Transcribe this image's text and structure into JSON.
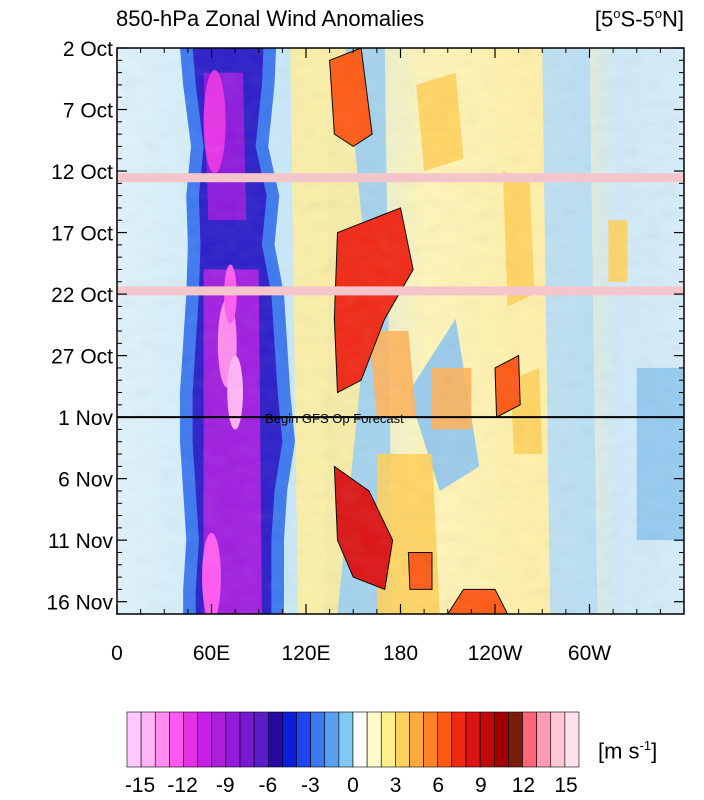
{
  "chart_data": {
    "type": "heatmap",
    "title": "850-hPa Zonal Wind Anomalies",
    "region": {
      "prefix": "[5",
      "lat_s": "S-5",
      "lat_n": "N]",
      "degree": "o"
    },
    "xlabel": "",
    "ylabel": "",
    "x_ticks": [
      "0",
      "60E",
      "120E",
      "180",
      "120W",
      "60W"
    ],
    "x_tick_lons": [
      0,
      60,
      120,
      180,
      240,
      300
    ],
    "x_range": [
      0,
      360
    ],
    "y_ticks": [
      "2 Oct",
      "7 Oct",
      "12 Oct",
      "17 Oct",
      "22 Oct",
      "27 Oct",
      "1 Nov",
      "6 Nov",
      "11 Nov",
      "16 Nov"
    ],
    "y_tick_days": [
      0,
      5,
      10,
      15,
      20,
      25,
      30,
      35,
      40,
      45
    ],
    "y_range_days": [
      0,
      46
    ],
    "forecast_line": {
      "day": 30,
      "label": "Begin GFS Op Forecast"
    },
    "missing_data_days": [
      10.5,
      19.7
    ],
    "colorbar": {
      "labels": [
        "-15",
        "-12",
        "-9",
        "-6",
        "-3",
        "0",
        "3",
        "6",
        "9",
        "12",
        "15"
      ],
      "units_base": "[m s",
      "units_exp": "-1",
      "units_end": "]",
      "colors": [
        "#ffc8ff",
        "#ffb4f5",
        "#ff8cf0",
        "#ff5af0",
        "#e632e6",
        "#c81ee6",
        "#aa1edc",
        "#9619dc",
        "#7819d2",
        "#5a1ec8",
        "#280aa0",
        "#0a1edc",
        "#1e46f0",
        "#3c78f0",
        "#5aa0f0",
        "#82c8f5",
        "#ffffff",
        "#fffac8",
        "#fff08c",
        "#ffd25a",
        "#ffaa3c",
        "#ff8228",
        "#ff5a14",
        "#f02814",
        "#dc1414",
        "#be0a0a",
        "#a00000",
        "#7a1e0a",
        "#ff6478",
        "#ff9bb4",
        "#ffc8d2",
        "#ffe1eb"
      ]
    },
    "anomaly_features": [
      {
        "lon": 70,
        "day_start": 0,
        "day_end": 46,
        "value": -10
      },
      {
        "lon": 155,
        "day_start": 0,
        "day_end": 5,
        "value": 9
      },
      {
        "lon": 160,
        "day_start": 13,
        "day_end": 27,
        "value": 9
      },
      {
        "lon": 160,
        "day_start": 35,
        "day_end": 43,
        "value": 9
      },
      {
        "lon": 195,
        "day_start": 42,
        "day_end": 46,
        "value": 7
      },
      {
        "lon": 250,
        "day_start": 44,
        "day_end": 46,
        "value": 7
      }
    ]
  }
}
